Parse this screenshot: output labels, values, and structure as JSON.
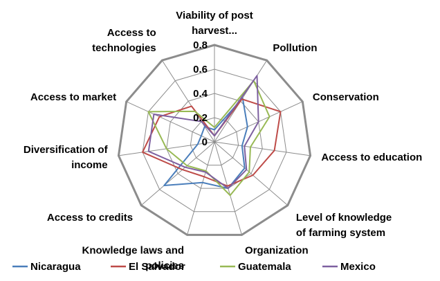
{
  "chart_data": {
    "type": "radar",
    "categories": [
      "Viability of post harvest...",
      "Pollution",
      "Conservation",
      "Access to education",
      "Level of knowledge of farming system",
      "Organization",
      "Knowledge laws and policies",
      "Access to credits",
      "Diversification of income",
      "Access to market",
      "Access to technologies"
    ],
    "category_lines": [
      [
        "Viability of post",
        "harvest..."
      ],
      [
        "Pollution"
      ],
      [
        "Conservation"
      ],
      [
        "Access to education"
      ],
      [
        "Level of knowledge",
        "of farming system"
      ],
      [
        "Organization"
      ],
      [
        "Knowledge laws and",
        "policies"
      ],
      [
        "Access to credits"
      ],
      [
        "Diversification of",
        "income"
      ],
      [
        "Access to market"
      ],
      [
        "Access to",
        "technologies"
      ]
    ],
    "rlim": [
      0,
      0.8
    ],
    "ticks": [
      "0",
      "0.2",
      "0.4",
      "0.6",
      "0.8"
    ],
    "grid": true,
    "legend_position": "bottom",
    "series": [
      {
        "name": "Nicaragua",
        "color": "#4a7ebb",
        "values": [
          0.1,
          0.43,
          0.3,
          0.23,
          0.33,
          0.4,
          0.35,
          0.55,
          0.14,
          0.12,
          0.15
        ]
      },
      {
        "name": "El Salvador",
        "color": "#be4b48",
        "values": [
          0.05,
          0.42,
          0.6,
          0.5,
          0.42,
          0.38,
          0.3,
          0.35,
          0.6,
          0.5,
          0.35
        ]
      },
      {
        "name": "Guatemala",
        "color": "#98b954",
        "values": [
          0.12,
          0.6,
          0.5,
          0.3,
          0.38,
          0.46,
          0.25,
          0.3,
          0.4,
          0.6,
          0.3
        ]
      },
      {
        "name": "Mexico",
        "color": "#7d60a0",
        "values": [
          0.05,
          0.65,
          0.4,
          0.25,
          0.35,
          0.4,
          0.26,
          0.32,
          0.55,
          0.55,
          0.2
        ]
      }
    ]
  }
}
